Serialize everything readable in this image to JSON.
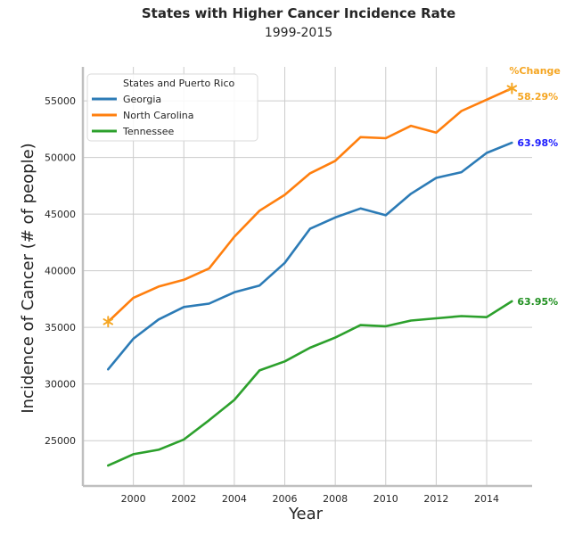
{
  "chart_data": {
    "type": "line",
    "title": "States with Higher Cancer Incidence Rate",
    "subtitle": "1999-2015",
    "xlabel": "Year",
    "ylabel": "Incidence of Cancer (# of people)",
    "xlim": [
      1998.0,
      2015.8
    ],
    "ylim": [
      21000,
      58000
    ],
    "xticks": [
      2000,
      2002,
      2004,
      2006,
      2008,
      2010,
      2012,
      2014
    ],
    "yticks": [
      25000,
      30000,
      35000,
      40000,
      45000,
      50000,
      55000
    ],
    "grid": true,
    "legend": {
      "title": "States and Puerto Rico",
      "position": "top-left"
    },
    "x": [
      1999,
      2000,
      2001,
      2002,
      2003,
      2004,
      2005,
      2006,
      2007,
      2008,
      2009,
      2010,
      2011,
      2012,
      2013,
      2014,
      2015
    ],
    "series": [
      {
        "name": "Georgia",
        "color": "#2c7bb6",
        "values": [
          31300,
          34000,
          35700,
          36800,
          37100,
          38100,
          38700,
          40700,
          43700,
          44700,
          45500,
          44900,
          46800,
          48200,
          48700,
          50400,
          51300
        ]
      },
      {
        "name": "North Carolina",
        "color": "#ff7f0e",
        "values": [
          35500,
          37600,
          38600,
          39200,
          40200,
          43000,
          45300,
          46700,
          48600,
          49700,
          51800,
          51700,
          52800,
          52200,
          54100,
          55100,
          56100
        ]
      },
      {
        "name": "Tennessee",
        "color": "#2ca02c",
        "values": [
          22800,
          23800,
          24200,
          25100,
          26800,
          28600,
          31200,
          32000,
          33200,
          34100,
          35200,
          35100,
          35600,
          35800,
          36000,
          35900,
          37300
        ]
      }
    ],
    "annotations": [
      {
        "text": "%Change",
        "color": "#f5a623",
        "anchor": "North Carolina"
      },
      {
        "text": "58.29%",
        "color": "#f5a623",
        "series": "North Carolina"
      },
      {
        "text": "63.98%",
        "color": "#1a1aff",
        "series": "Georgia"
      },
      {
        "text": "63.95%",
        "color": "#1f8f1f",
        "series": "Tennessee"
      }
    ],
    "markers": [
      {
        "series": "North Carolina",
        "x": 1999,
        "y": 35500,
        "symbol": "star",
        "color": "#f5a623"
      },
      {
        "series": "North Carolina",
        "x": 2015,
        "y": 56100,
        "symbol": "star",
        "color": "#f5a623"
      }
    ]
  }
}
